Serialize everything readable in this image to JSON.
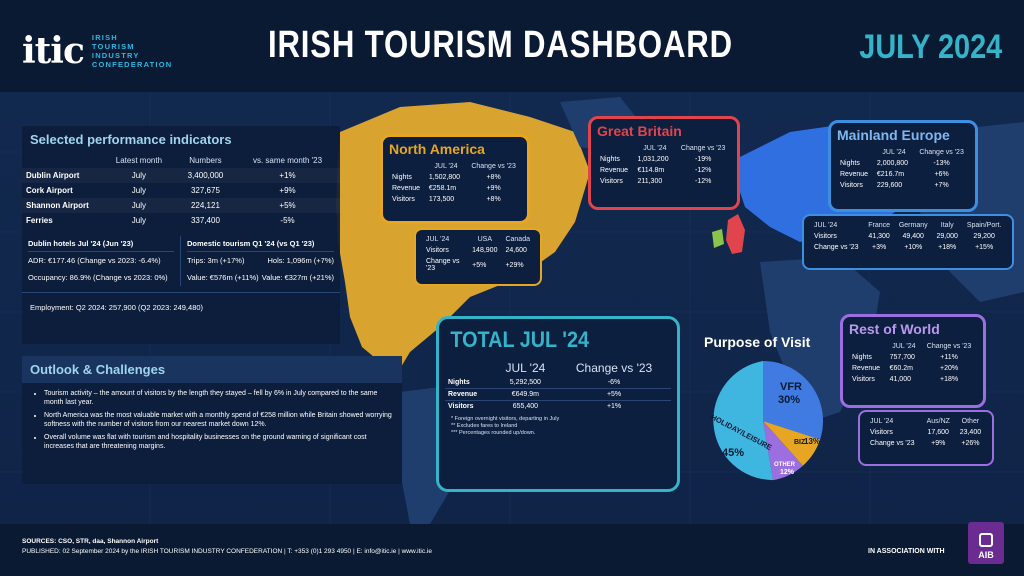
{
  "header": {
    "logo_mark": "itic",
    "logo_lines": [
      "IRISH",
      "TOURISM",
      "INDUSTRY",
      "CONFEDERATION"
    ],
    "title": "IRISH TOURISM DASHBOARD",
    "month": "JULY 2024"
  },
  "colors": {
    "background": "#0b1a33",
    "map_land": "#d9a330",
    "ireland": "#8ac44a",
    "europe": "#2f6fe0",
    "north_america_border": "#e6a624",
    "great_britain_border": "#e0454d",
    "mainland_europe_border": "#3d8fe0",
    "rest_of_world_border": "#9b6fe0",
    "total_border": "#34b3c9",
    "vfr": "#3f7be0",
    "biz": "#e6a624",
    "other": "#9b6fe0",
    "holiday": "#3fb6e0"
  },
  "indicators": {
    "title": "Selected performance indicators",
    "headers": [
      "",
      "Latest month",
      "Numbers",
      "vs. same month '23"
    ],
    "rows": [
      [
        "Dublin Airport",
        "July",
        "3,400,000",
        "+1%"
      ],
      [
        "Cork Airport",
        "July",
        "327,675",
        "+9%"
      ],
      [
        "Shannon Airport",
        "July",
        "224,121",
        "+5%"
      ],
      [
        "Ferries",
        "July",
        "337,400",
        "-5%"
      ]
    ],
    "hotels_title": "Dublin hotels  Jul '24 (Jun '23)",
    "adr": "ADR: €177.46 (Change vs 2023: -6.4%)",
    "occupancy": "Occupancy: 86.9% (Change vs 2023: 0%)",
    "domestic_title": "Domestic tourism Q1 '24  (vs Q1 '23)",
    "trips": "Trips: 3m (+17%)",
    "hols": "Hols: 1,096m (+7%)",
    "value1": "Value: €576m (+11%)",
    "value2": "Value: €327m (+21%)",
    "employment": "Employment: Q2 2024: 257,900 (Q2 2023: 249,480)"
  },
  "outlook": {
    "title": "Outlook & Challenges",
    "bullets": [
      "Tourism activity – the amount of visitors by the length they stayed – fell by 6% in July compared to the same month last year.",
      "North America was the most valuable market with a monthly spend of €258 million while Britain showed worrying softness with the number of visitors from our nearest market down 12%.",
      "Overall volume was flat with tourism and hospitality businesses on the ground warning of significant cost increases that are threatening margins."
    ]
  },
  "north_america": {
    "title": "North America",
    "headers": [
      "",
      "JUL '24",
      "Change vs '23"
    ],
    "rows": [
      [
        "Nights",
        "1,502,800",
        "+8%"
      ],
      [
        "Revenue",
        "€258.1m",
        "+9%"
      ],
      [
        "Visitors",
        "173,500",
        "+8%"
      ]
    ],
    "sub_headers": [
      "JUL '24",
      "USA",
      "Canada"
    ],
    "sub_rows": [
      [
        "Visitors",
        "148,900",
        "24,600"
      ],
      [
        "Change vs '23",
        "+5%",
        "+29%"
      ]
    ]
  },
  "great_britain": {
    "title": "Great Britain",
    "headers": [
      "",
      "JUL '24",
      "Change vs '23"
    ],
    "rows": [
      [
        "Nights",
        "1,031,200",
        "-19%"
      ],
      [
        "Revenue",
        "€114.8m",
        "-12%"
      ],
      [
        "Visitors",
        "211,300",
        "-12%"
      ]
    ]
  },
  "mainland_europe": {
    "title": "Mainland Europe",
    "headers": [
      "",
      "JUL '24",
      "Change vs '23"
    ],
    "rows": [
      [
        "Nights",
        "2,000,800",
        "-13%"
      ],
      [
        "Revenue",
        "€216.7m",
        "+6%"
      ],
      [
        "Visitors",
        "229,600",
        "+7%"
      ]
    ],
    "sub_headers": [
      "JUL '24",
      "France",
      "Germany",
      "Italy",
      "Spain/Port."
    ],
    "sub_rows": [
      [
        "Visitors",
        "41,300",
        "49,400",
        "29,000",
        "29,200"
      ],
      [
        "Change vs '23",
        "+3%",
        "+10%",
        "+18%",
        "+15%"
      ]
    ]
  },
  "rest_of_world": {
    "title": "Rest of World",
    "headers": [
      "",
      "JUL '24",
      "Change vs '23"
    ],
    "rows": [
      [
        "Nights",
        "757,700",
        "+11%"
      ],
      [
        "Revenue",
        "€60.2m",
        "+20%"
      ],
      [
        "Visitors",
        "41,000",
        "+18%"
      ]
    ],
    "sub_headers": [
      "JUL '24",
      "Aus/NZ",
      "Other"
    ],
    "sub_rows": [
      [
        "Visitors",
        "17,600",
        "23,400"
      ],
      [
        "Change vs '23",
        "+9%",
        "+26%"
      ]
    ]
  },
  "total": {
    "title": "TOTAL JUL '24",
    "headers": [
      "",
      "JUL '24",
      "Change vs '23"
    ],
    "rows": [
      [
        "Nights",
        "5,292,500",
        "-6%"
      ],
      [
        "Revenue",
        "€649.9m",
        "+5%"
      ],
      [
        "Visitors",
        "655,400",
        "+1%"
      ]
    ],
    "notes": [
      "*   Foreign overnight visitors, departing in July",
      "**  Excludes fares to Ireland",
      "*** Percentages rounded up/down."
    ]
  },
  "purpose": {
    "title": "Purpose of Visit",
    "slices": [
      {
        "label": "VFR",
        "value": 30,
        "text": "30%"
      },
      {
        "label": "BIZ",
        "value": 13,
        "text": "13%"
      },
      {
        "label": "OTHER",
        "value": 12,
        "text": "12%"
      },
      {
        "label": "HOLIDAY/LEISURE",
        "value": 45,
        "text": "45%"
      }
    ]
  },
  "footer": {
    "sources": "SOURCES: CSO, STR, daa, Shannon Airport",
    "published": "PUBLISHED: 02 September 2024 by the IRISH TOURISM INDUSTRY CONFEDERATION  |  T: +353 (0)1 293 4950  |  E: info@itic.ie  |  www.itic.ie",
    "association": "IN ASSOCIATION WITH",
    "aib": "AIB"
  }
}
